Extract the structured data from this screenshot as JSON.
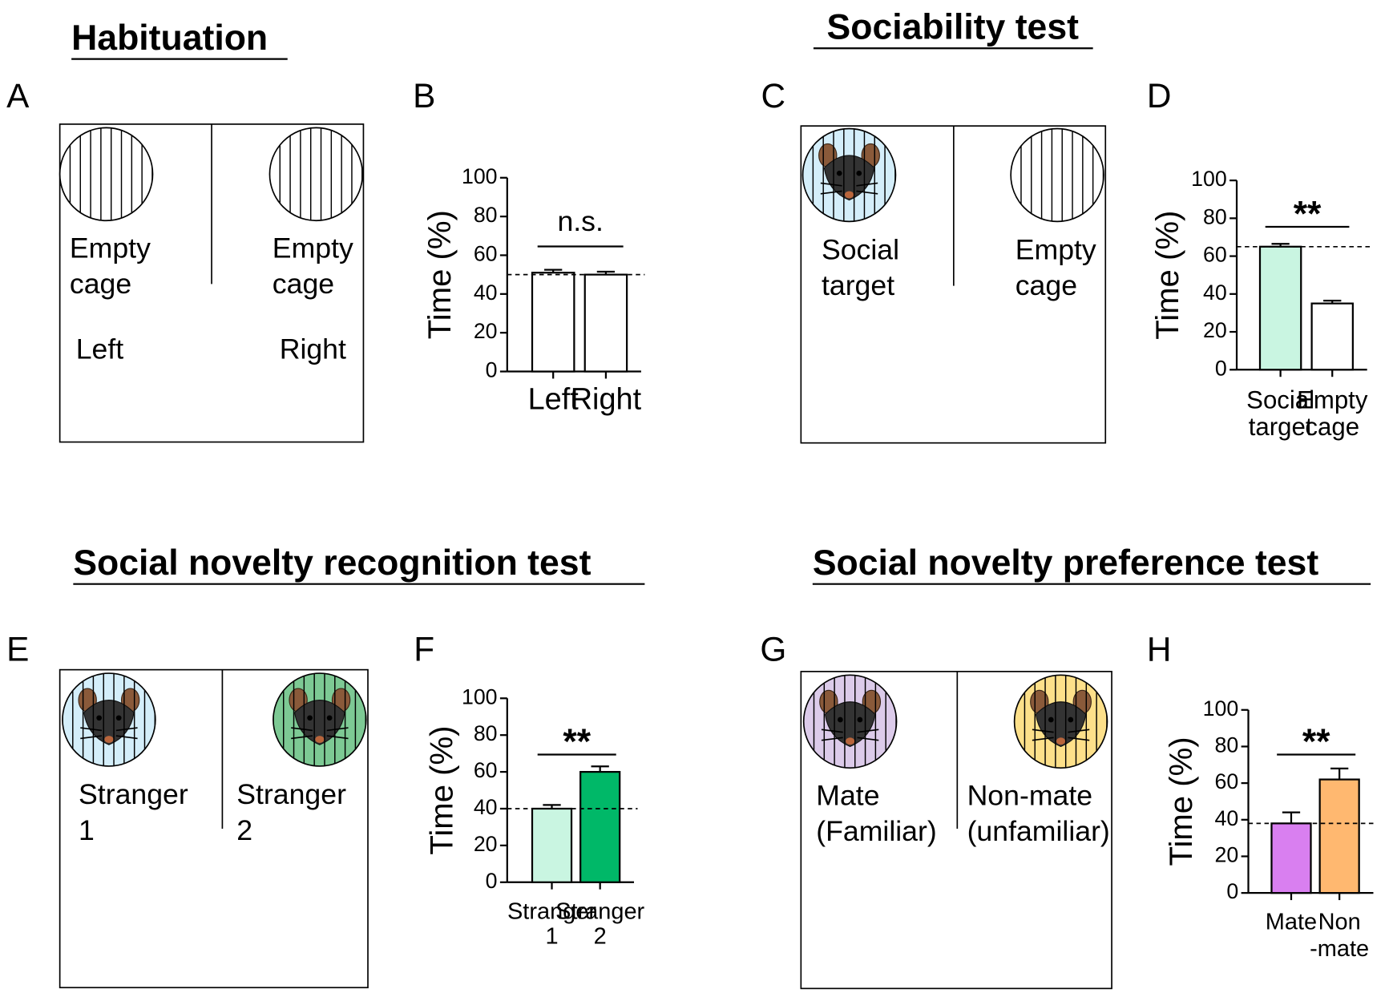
{
  "sections": [
    "Habituation",
    "Sociability test",
    "Social novelty recognition test",
    "Social novelty preference test"
  ],
  "panels": [
    {
      "letter": "A",
      "labels": [
        [
          "Empty",
          "cage"
        ],
        [
          "Empty",
          "cage"
        ]
      ],
      "sides": [
        "Left",
        "Right"
      ],
      "cage_colors": [
        "#ffffff",
        "#ffffff"
      ],
      "mice": [
        false,
        false
      ]
    },
    {
      "letter": "C",
      "labels": [
        [
          "Social",
          "target"
        ],
        [
          "Empty",
          "cage"
        ]
      ],
      "cage_colors": [
        "#d4eefa",
        "#ffffff"
      ],
      "mice": [
        true,
        false
      ]
    },
    {
      "letter": "E",
      "labels": [
        [
          "Stranger",
          "1"
        ],
        [
          "Stranger",
          "2"
        ]
      ],
      "cage_colors": [
        "#d4eefa",
        "#7dc994"
      ],
      "mice": [
        true,
        true
      ]
    },
    {
      "letter": "G",
      "labels": [
        [
          "Mate",
          "(Familiar)"
        ],
        [
          "Non-mate",
          "(unfamiliar)"
        ]
      ],
      "cage_colors": [
        "#dccbea",
        "#fde08a"
      ],
      "mice": [
        true,
        true
      ]
    }
  ],
  "chart_data": [
    {
      "type": "bar",
      "letter": "B",
      "ylabel": "Time (%)",
      "categories": [
        [
          "Left"
        ],
        [
          "Right"
        ]
      ],
      "values": [
        51,
        50
      ],
      "errors": [
        1.5,
        1.5
      ],
      "colors": [
        "#ffffff",
        "#ffffff"
      ],
      "ylim": [
        0,
        100
      ],
      "yticks": [
        0,
        20,
        40,
        60,
        80,
        100
      ],
      "reference": 50,
      "annotation": "n.s."
    },
    {
      "type": "bar",
      "letter": "D",
      "ylabel": "Time (%)",
      "categories": [
        [
          "Social",
          "target"
        ],
        [
          "Empty",
          "cage"
        ]
      ],
      "values": [
        65,
        35
      ],
      "errors": [
        1.5,
        1.5
      ],
      "colors": [
        "#c9f5e1",
        "#ffffff"
      ],
      "ylim": [
        0,
        100
      ],
      "yticks": [
        0,
        20,
        40,
        60,
        80,
        100
      ],
      "reference": 65,
      "annotation": "**"
    },
    {
      "type": "bar",
      "letter": "F",
      "ylabel": "Time (%)",
      "categories": [
        [
          "Stranger",
          "1"
        ],
        [
          "Stranger",
          "2"
        ]
      ],
      "values": [
        40,
        60
      ],
      "errors": [
        2,
        3
      ],
      "colors": [
        "#c9f5e1",
        "#00b868"
      ],
      "ylim": [
        0,
        100
      ],
      "yticks": [
        0,
        20,
        40,
        60,
        80,
        100
      ],
      "reference": 40,
      "annotation": "**"
    },
    {
      "type": "bar",
      "letter": "H",
      "ylabel": "Time (%)",
      "categories": [
        [
          "Mate"
        ],
        [
          "Non",
          "-mate"
        ]
      ],
      "values": [
        38,
        62
      ],
      "errors": [
        6,
        6
      ],
      "colors": [
        "#d97ff0",
        "#ffb870"
      ],
      "ylim": [
        0,
        100
      ],
      "yticks": [
        0,
        20,
        40,
        60,
        80,
        100
      ],
      "reference": 38,
      "annotation": "**"
    }
  ]
}
